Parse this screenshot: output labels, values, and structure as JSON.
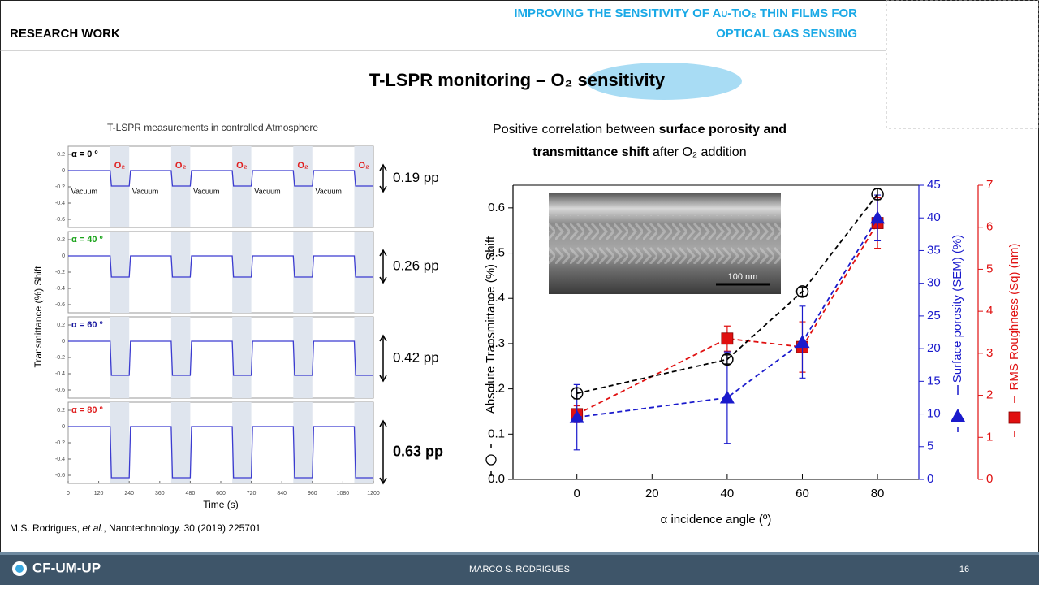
{
  "header": {
    "section": "RESEARCH WORK",
    "title_lines": [
      "IMPROVING THE SENSITIVITY OF Au-TiO₂ THIN FILMS FOR",
      "OPTICAL GAS SENSING"
    ]
  },
  "subtitle": [
    "T-LSPR monitoring – ",
    "O₂ sensitivity"
  ],
  "caption": [
    "Positive correlation between ",
    "surface porosity and",
    "transmittance shift",
    " after O₂ addition"
  ],
  "citation": [
    "M.S. Rodrigues, ",
    "et al.",
    ", Nanotechnology. 30 (2019) 225701"
  ],
  "footer": {
    "logo": "CF-UM-UP",
    "author": "MARCO S. RODRIGUES",
    "page": "16"
  },
  "chart_data": [
    {
      "type": "line",
      "title": "T-LSPR measurements in controlled Atmosphere",
      "xlabel": "Time (s)",
      "ylabel": "Transmittance (%) Shift",
      "x": [
        0,
        165,
        170,
        240,
        245,
        405,
        410,
        480,
        485,
        645,
        650,
        720,
        725,
        885,
        890,
        960,
        965,
        1125,
        1130,
        1200
      ],
      "xlim": [
        0,
        1200
      ],
      "xticks": [
        0,
        120,
        240,
        360,
        480,
        600,
        720,
        840,
        960,
        1080,
        1200
      ],
      "ylim": [
        -0.7,
        0.3
      ],
      "yticks": [
        0.2,
        0,
        -0.2,
        -0.4,
        -0.6
      ],
      "shaded": [
        [
          165,
          240
        ],
        [
          405,
          480
        ],
        [
          645,
          720
        ],
        [
          885,
          960
        ],
        [
          1125,
          1200
        ]
      ],
      "o2_labels": [
        "O₂",
        "O₂",
        "O₂",
        "O₂",
        "O₂"
      ],
      "vacuum_labels": [
        "Vacuum",
        "Vacuum",
        "Vacuum",
        "Vacuum",
        "Vacuum"
      ],
      "series": [
        {
          "name": "α = 0 º",
          "label_color": "#000000",
          "color": "#3b3bd0",
          "shift_label": "0.19 pp",
          "values": [
            0,
            0,
            -0.19,
            -0.19,
            0,
            0,
            -0.19,
            -0.19,
            0,
            0,
            -0.19,
            -0.19,
            0,
            0,
            -0.19,
            -0.19,
            0,
            0,
            -0.19,
            -0.19
          ]
        },
        {
          "name": "α = 40 º",
          "label_color": "#1aa31a",
          "color": "#3b3bd0",
          "shift_label": "0.26 pp",
          "values": [
            0,
            0,
            -0.26,
            -0.26,
            0,
            0,
            -0.26,
            -0.26,
            0,
            0,
            -0.26,
            -0.26,
            0,
            0,
            -0.26,
            -0.26,
            0,
            0,
            -0.26,
            -0.26
          ]
        },
        {
          "name": "α = 60 º",
          "label_color": "#1a1aa0",
          "color": "#3b3bd0",
          "shift_label": "0.42 pp",
          "values": [
            0,
            0,
            -0.42,
            -0.42,
            0,
            0,
            -0.42,
            -0.42,
            0,
            0,
            -0.42,
            -0.42,
            0,
            0,
            -0.42,
            -0.42,
            0,
            0,
            -0.42,
            -0.42
          ]
        },
        {
          "name": "α = 80 º",
          "label_color": "#e02020",
          "color": "#3b3bd0",
          "shift_label": "0.63 pp",
          "values": [
            0,
            0,
            -0.63,
            -0.63,
            0,
            0,
            -0.63,
            -0.63,
            0,
            0,
            -0.63,
            -0.63,
            0,
            0,
            -0.63,
            -0.63,
            0,
            0,
            -0.63,
            -0.63
          ]
        }
      ]
    },
    {
      "type": "scatter",
      "xlabel": "α incidence angle (º)",
      "inset_label": "100 nm",
      "x": [
        0,
        40,
        60,
        80
      ],
      "xlim": [
        -17,
        91
      ],
      "xticks": [
        0,
        20,
        40,
        60,
        80
      ],
      "ylim": [
        0,
        0.65
      ],
      "yticks": [
        {
          "value": 0,
          "label": "0.0"
        },
        0.1,
        0.2,
        0.3,
        0.4,
        0.5,
        0.6
      ],
      "y2lim": [
        0,
        45
      ],
      "y2ticks": [
        0,
        5,
        10,
        15,
        20,
        25,
        30,
        35,
        40,
        45
      ],
      "y3lim": [
        0,
        7
      ],
      "y3ticks": [
        0,
        1,
        2,
        3,
        4,
        5,
        6,
        7
      ],
      "ylabel": "Absolute Transmittance (%) Shift",
      "y2label": "Surface porosity (SEM) (%)",
      "y3label": "RMS Roughness (Sq) (nm)",
      "series": [
        {
          "axis": "y",
          "marker": "circle",
          "color": "#000000",
          "values": [
            0.19,
            0.265,
            0.415,
            0.63
          ],
          "errors": [
            0.012,
            0.01,
            0.01,
            0.012
          ]
        },
        {
          "axis": "y2",
          "marker": "triangle",
          "color": "#1a1acc",
          "values": [
            9.5,
            12.5,
            21,
            40
          ],
          "errors": [
            5,
            7,
            5.5,
            3.5
          ]
        },
        {
          "axis": "y3",
          "marker": "square",
          "color": "#e01010",
          "values": [
            1.55,
            3.35,
            3.15,
            6.1
          ],
          "errors": [
            0.2,
            0.3,
            0.6,
            0.6
          ]
        }
      ]
    }
  ]
}
